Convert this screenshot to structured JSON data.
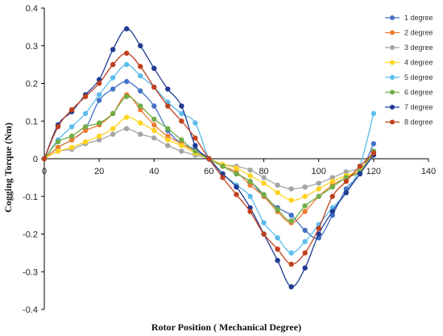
{
  "chart_data": {
    "type": "line",
    "title": "",
    "xlabel": "Rotor Position ( Mechanical Degree)",
    "ylabel": "Cogging Torque (Nm)",
    "xlim": [
      0,
      140
    ],
    "ylim": [
      -0.4,
      0.4
    ],
    "xticks": [
      0,
      20,
      40,
      60,
      80,
      100,
      120,
      140
    ],
    "yticks": [
      0.4,
      0.3,
      0.2,
      0.1,
      0,
      -0.1,
      -0.2,
      -0.3,
      -0.4
    ],
    "grid": false,
    "legend_position": "top-right",
    "x": [
      0,
      5,
      10,
      15,
      20,
      25,
      30,
      35,
      40,
      45,
      50,
      55,
      60,
      65,
      70,
      75,
      80,
      85,
      90,
      95,
      100,
      105,
      110,
      115,
      120
    ],
    "series": [
      {
        "name": "1 degree",
        "color": "#4472c4",
        "values": [
          0,
          0.03,
          0.05,
          0.08,
          0.155,
          0.185,
          0.205,
          0.18,
          0.14,
          0.075,
          0.04,
          0.025,
          0,
          -0.02,
          -0.04,
          -0.06,
          -0.1,
          -0.13,
          -0.15,
          -0.19,
          -0.21,
          -0.15,
          -0.08,
          -0.04,
          0.04
        ]
      },
      {
        "name": "2 degree",
        "color": "#ed7d31",
        "values": [
          0,
          0.03,
          0.05,
          0.075,
          0.09,
          0.12,
          0.17,
          0.13,
          0.09,
          0.06,
          0.04,
          0.02,
          0,
          -0.02,
          -0.035,
          -0.07,
          -0.1,
          -0.14,
          -0.17,
          -0.14,
          -0.1,
          -0.07,
          -0.05,
          -0.03,
          0.02
        ]
      },
      {
        "name": "3 degree",
        "color": "#a5a5a5",
        "values": [
          0,
          0.02,
          0.025,
          0.04,
          0.05,
          0.065,
          0.08,
          0.065,
          0.055,
          0.035,
          0.02,
          0.01,
          0,
          -0.015,
          -0.02,
          -0.03,
          -0.05,
          -0.07,
          -0.08,
          -0.075,
          -0.065,
          -0.05,
          -0.035,
          -0.025,
          0.01
        ]
      },
      {
        "name": "4 degree",
        "color": "#ffd320",
        "values": [
          0,
          0.02,
          0.03,
          0.045,
          0.06,
          0.08,
          0.11,
          0.095,
          0.075,
          0.05,
          0.035,
          0.015,
          0,
          -0.015,
          -0.025,
          -0.045,
          -0.065,
          -0.09,
          -0.11,
          -0.1,
          -0.08,
          -0.06,
          -0.045,
          -0.03,
          0.015
        ]
      },
      {
        "name": "5 degree",
        "color": "#5bbcee",
        "values": [
          0,
          0.05,
          0.085,
          0.12,
          0.17,
          0.215,
          0.25,
          0.22,
          0.19,
          0.15,
          0.12,
          0.095,
          0,
          -0.04,
          -0.07,
          -0.1,
          -0.17,
          -0.21,
          -0.25,
          -0.22,
          -0.175,
          -0.13,
          -0.09,
          -0.02,
          0.12
        ]
      },
      {
        "name": "6 degree",
        "color": "#70ad47",
        "values": [
          0,
          0.045,
          0.06,
          0.085,
          0.095,
          0.12,
          0.165,
          0.14,
          0.105,
          0.08,
          0.05,
          0.02,
          0,
          -0.02,
          -0.04,
          -0.06,
          -0.095,
          -0.135,
          -0.165,
          -0.125,
          -0.1,
          -0.075,
          -0.05,
          -0.035,
          0.02
        ]
      },
      {
        "name": "7 degree",
        "color": "#1f3a93",
        "values": [
          0,
          0.09,
          0.125,
          0.17,
          0.21,
          0.29,
          0.345,
          0.3,
          0.24,
          0.185,
          0.14,
          0.035,
          0,
          -0.04,
          -0.075,
          -0.13,
          -0.2,
          -0.27,
          -0.34,
          -0.29,
          -0.2,
          -0.14,
          -0.09,
          -0.04,
          0.01
        ]
      },
      {
        "name": "8 degree",
        "color": "#c0401e",
        "values": [
          0,
          0.085,
          0.13,
          0.165,
          0.2,
          0.25,
          0.28,
          0.245,
          0.19,
          0.14,
          0.1,
          0.055,
          0,
          -0.05,
          -0.095,
          -0.14,
          -0.2,
          -0.24,
          -0.28,
          -0.25,
          -0.185,
          -0.1,
          -0.06,
          -0.02,
          0.015
        ]
      }
    ]
  }
}
